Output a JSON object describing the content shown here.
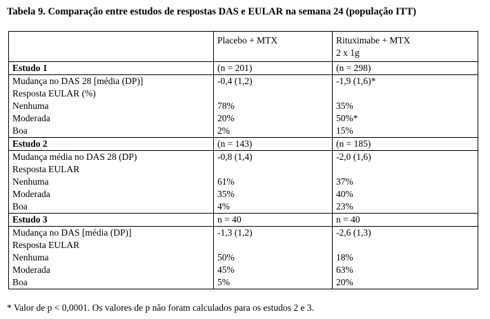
{
  "title": "Tabela 9. Comparação entre estudos de respostas DAS e EULAR na semana 24 (população ITT)",
  "columns": [
    "",
    "Placebo + MTX",
    "Rituximabe + MTX 2 x 1g"
  ],
  "header": {
    "col2": "Placebo + MTX",
    "col3_line1": "Rituximabe + MTX",
    "col3_line2": "2 x 1g"
  },
  "studies": [
    {
      "name": "Estudo 1",
      "n_placebo": "(n = 201)",
      "n_ritux": "(n = 298)",
      "rows": [
        {
          "label": "Mudança no DAS 28 [média (DP)]",
          "placebo": "-0,4 (1,2)",
          "ritux": "-1,9 (1,6)*"
        },
        {
          "label": "Resposta EULAR (%)",
          "placebo": "",
          "ritux": ""
        },
        {
          "label": "Nenhuma",
          "placebo": "78%",
          "ritux": "35%"
        },
        {
          "label": "Moderada",
          "placebo": "20%",
          "ritux": "50%*"
        },
        {
          "label": "Boa",
          "placebo": "2%",
          "ritux": "15%"
        }
      ]
    },
    {
      "name": "Estudo 2",
      "n_placebo": "(n = 143)",
      "n_ritux": "(n = 185)",
      "rows": [
        {
          "label": "Mudança média no DAS 28 (DP)",
          "placebo": "-0,8 (1,4)",
          "ritux": "-2,0 (1,6)"
        },
        {
          "label": "Resposta EULAR",
          "placebo": "",
          "ritux": ""
        },
        {
          "label": "Nenhuma",
          "placebo": "61%",
          "ritux": "37%"
        },
        {
          "label": "Moderada",
          "placebo": "35%",
          "ritux": "40%"
        },
        {
          "label": "Boa",
          "placebo": "4%",
          "ritux": "23%"
        }
      ]
    },
    {
      "name": "Estudo 3",
      "n_placebo": "n = 40",
      "n_ritux": "n = 40",
      "rows": [
        {
          "label": "Mudança no DAS [média (DP)]",
          "placebo": "-1,3 (1,2)",
          "ritux": "-2,6 (1,3)"
        },
        {
          "label": "Resposta EULAR",
          "placebo": "",
          "ritux": ""
        },
        {
          "label": "Nenhuma",
          "placebo": "50%",
          "ritux": "18%"
        },
        {
          "label": "Moderada",
          "placebo": "45%",
          "ritux": "63%"
        },
        {
          "label": "Boa",
          "placebo": "5%",
          "ritux": "20%"
        }
      ]
    }
  ],
  "footnote": "* Valor de p < 0,0001. Os valores de p não foram calculados para os estudos 2 e 3."
}
